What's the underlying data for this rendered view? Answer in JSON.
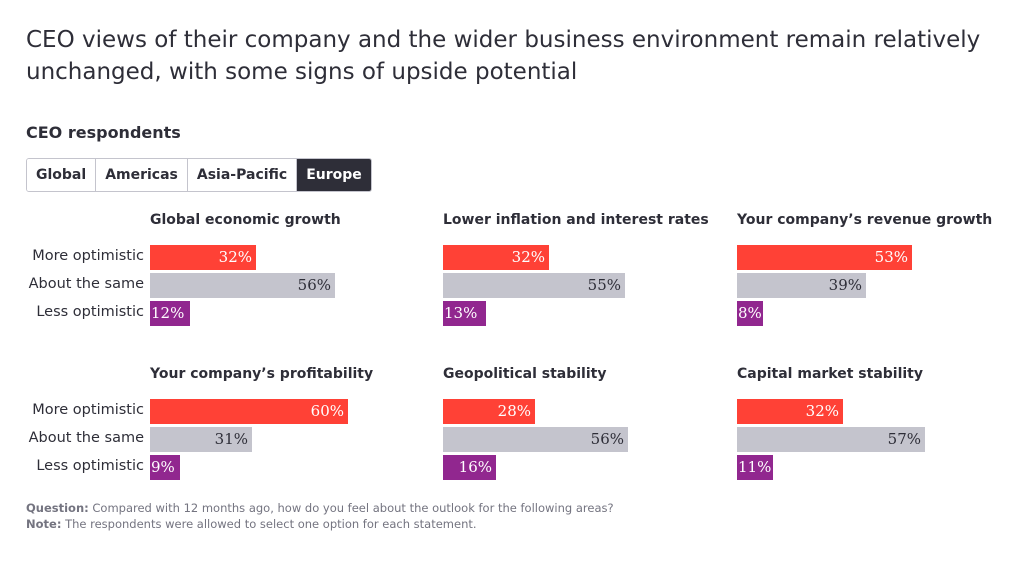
{
  "header": {
    "title": "CEO views of their company and the wider business environment remain relatively unchanged, with some signs of upside potential",
    "subtitle": "CEO respondents"
  },
  "tabs": [
    {
      "label": "Global",
      "active": false
    },
    {
      "label": "Americas",
      "active": false
    },
    {
      "label": "Asia-Pacific",
      "active": false
    },
    {
      "label": "Europe",
      "active": true
    }
  ],
  "colors": {
    "more": "#ff4136",
    "same": "#c4c4cd",
    "less": "#91278f"
  },
  "row_labels": [
    "More optimistic",
    "About the same",
    "Less optimistic"
  ],
  "chart_data": {
    "type": "bar",
    "orientation": "horizontal",
    "region": "Europe",
    "categories": [
      "More optimistic",
      "About the same",
      "Less optimistic"
    ],
    "unit": "%",
    "panels": [
      {
        "title": "Global economic growth",
        "values": [
          32,
          56,
          12
        ]
      },
      {
        "title": "Lower inflation and interest rates",
        "values": [
          32,
          55,
          13
        ]
      },
      {
        "title": "Your company’s revenue growth",
        "values": [
          53,
          39,
          8
        ]
      },
      {
        "title": "Your company’s profitability",
        "values": [
          60,
          31,
          9
        ]
      },
      {
        "title": "Geopolitical stability",
        "values": [
          28,
          56,
          16
        ]
      },
      {
        "title": "Capital market stability",
        "values": [
          32,
          57,
          11
        ]
      }
    ]
  },
  "footnote": {
    "question_label": "Question:",
    "question_text": "Compared with 12 months ago, how do you feel about the outlook for the following areas?",
    "note_label": "Note:",
    "note_text": "The respondents were allowed to select one option for each statement."
  }
}
